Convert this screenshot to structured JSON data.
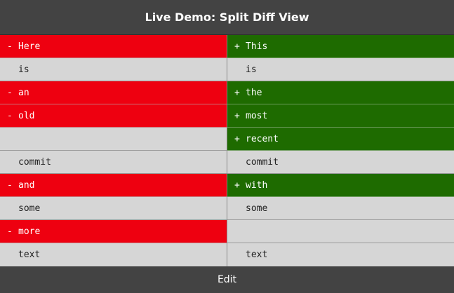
{
  "header": {
    "title": "Live Demo: Split Diff View"
  },
  "left": [
    {
      "marker": "-",
      "text": "Here",
      "kind": "del"
    },
    {
      "marker": "",
      "text": "is",
      "kind": "same"
    },
    {
      "marker": "-",
      "text": "an",
      "kind": "del"
    },
    {
      "marker": "-",
      "text": "old",
      "kind": "del"
    },
    {
      "marker": "",
      "text": "",
      "kind": "same"
    },
    {
      "marker": "",
      "text": "commit",
      "kind": "same"
    },
    {
      "marker": "-",
      "text": "and",
      "kind": "del"
    },
    {
      "marker": "",
      "text": "some",
      "kind": "same"
    },
    {
      "marker": "-",
      "text": "more",
      "kind": "del"
    },
    {
      "marker": "",
      "text": "text",
      "kind": "same"
    }
  ],
  "right": [
    {
      "marker": "+",
      "text": "This",
      "kind": "add"
    },
    {
      "marker": "",
      "text": "is",
      "kind": "same"
    },
    {
      "marker": "+",
      "text": "the",
      "kind": "add"
    },
    {
      "marker": "+",
      "text": "most",
      "kind": "add"
    },
    {
      "marker": "+",
      "text": "recent",
      "kind": "add"
    },
    {
      "marker": "",
      "text": "commit",
      "kind": "same"
    },
    {
      "marker": "+",
      "text": "with",
      "kind": "add"
    },
    {
      "marker": "",
      "text": "some",
      "kind": "same"
    },
    {
      "marker": "",
      "text": "",
      "kind": "same"
    },
    {
      "marker": "",
      "text": "text",
      "kind": "same"
    }
  ],
  "footer": {
    "edit_label": "Edit"
  },
  "colors": {
    "deleted": "#ee0010",
    "added": "#1e6b00",
    "header": "#434343",
    "neutral": "#d6d6d6"
  }
}
